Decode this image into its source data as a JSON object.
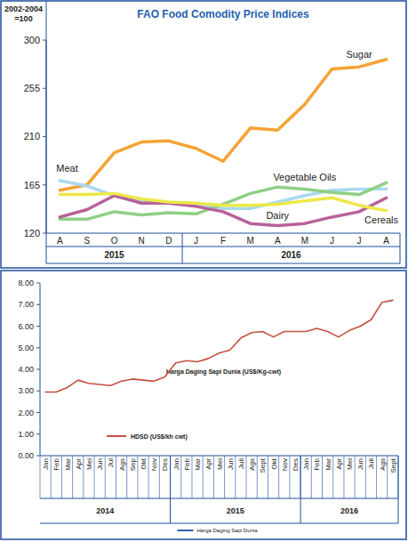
{
  "chart_data": [
    {
      "type": "line",
      "title": "FAO Food Comodity Price Indices",
      "ylabel": "2002-2004 =100",
      "categories": [
        "A",
        "S",
        "O",
        "N",
        "D",
        "J",
        "F",
        "M",
        "A",
        "M",
        "J",
        "J",
        "A"
      ],
      "category_groups": [
        {
          "label": "2015",
          "start": 0,
          "end": 4
        },
        {
          "label": "2016",
          "start": 5,
          "end": 12
        }
      ],
      "series": [
        {
          "name": "Sugar",
          "color": "#f5a336",
          "values": [
            160,
            165,
            195,
            205,
            206,
            199,
            187,
            218,
            216,
            240,
            273,
            275,
            282
          ]
        },
        {
          "name": "Meat",
          "color": "#a9d9ef",
          "values": [
            169,
            164,
            155,
            150,
            148,
            146,
            143,
            143,
            149,
            155,
            160,
            161,
            161
          ]
        },
        {
          "name": "Vegetable Oils",
          "color": "#8fcf86",
          "values": [
            133,
            133,
            140,
            137,
            139,
            138,
            147,
            157,
            163,
            161,
            158,
            156,
            167
          ]
        },
        {
          "name": "Dairy",
          "color": "#b8619b",
          "values": [
            135,
            142,
            155,
            148,
            148,
            145,
            140,
            129,
            127,
            129,
            135,
            140,
            153
          ]
        },
        {
          "name": "Cereals",
          "color": "#ece84a",
          "values": [
            156,
            156,
            157,
            152,
            149,
            148,
            146,
            146,
            147,
            150,
            153,
            146,
            141
          ]
        }
      ],
      "ylim": [
        120,
        300
      ],
      "yticks": [
        120,
        165,
        210,
        255,
        300
      ],
      "grid": false
    },
    {
      "type": "line",
      "title": "Harga Daging Sapi Dunia (US$/Kg-cwt)",
      "annotation": "Harga Daging Sapi Dunia",
      "categories": [
        "Jan",
        "Feb",
        "Mar",
        "Apr",
        "Mei",
        "Jun",
        "Jul",
        "Ags",
        "Sep",
        "Okt",
        "Nov",
        "Des",
        "Jan",
        "Feb",
        "Mar",
        "Apr",
        "Mei",
        "Jun",
        "Juli",
        "Ags",
        "Sept",
        "Okt",
        "Nov",
        "Des",
        "Jan",
        "Feb",
        "Mar",
        "Apr",
        "Mei",
        "Jun",
        "Juli",
        "Ags",
        "Sept"
      ],
      "category_groups": [
        {
          "label": "2014",
          "start": 0,
          "end": 11
        },
        {
          "label": "2015",
          "start": 12,
          "end": 23
        },
        {
          "label": "2016",
          "start": 24,
          "end": 32
        }
      ],
      "series": [
        {
          "name": "HDSD (US$/kh cwt)",
          "color": "#c4503f",
          "values": [
            2.95,
            2.95,
            3.15,
            3.5,
            3.35,
            3.3,
            3.25,
            3.45,
            3.55,
            3.5,
            3.45,
            3.65,
            4.3,
            4.4,
            4.35,
            4.5,
            4.75,
            4.9,
            5.45,
            5.7,
            5.75,
            5.5,
            5.75,
            5.75,
            5.75,
            5.9,
            5.75,
            5.5,
            5.8,
            6.0,
            6.3,
            7.1,
            7.2
          ]
        }
      ],
      "ylim": [
        0,
        8
      ],
      "yticks": [
        {
          "value": 0,
          "label": "0.00"
        },
        {
          "value": 1,
          "label": "1.00"
        },
        {
          "value": 2,
          "label": "2.00"
        },
        {
          "value": 3,
          "label": "3.00"
        },
        {
          "value": 4,
          "label": "4.00"
        },
        {
          "value": 5,
          "label": "5.00"
        },
        {
          "value": 6,
          "label": "6.00"
        },
        {
          "value": 7,
          "label": "7.00"
        },
        {
          "value": 8,
          "label": "8.00"
        }
      ],
      "grid": false,
      "legend": "bottom-left"
    }
  ]
}
